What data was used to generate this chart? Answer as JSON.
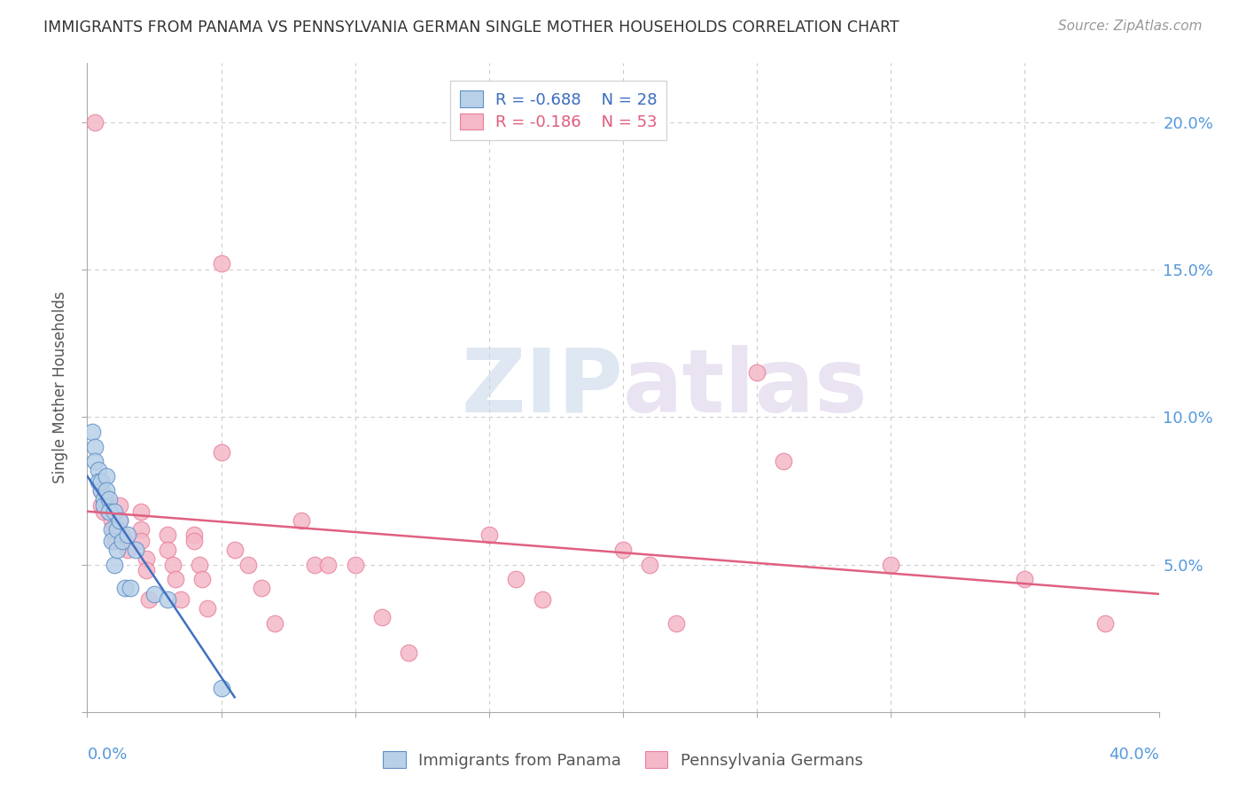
{
  "title": "IMMIGRANTS FROM PANAMA VS PENNSYLVANIA GERMAN SINGLE MOTHER HOUSEHOLDS CORRELATION CHART",
  "source": "Source: ZipAtlas.com",
  "ylabel": "Single Mother Households",
  "legend_blue_r": "-0.688",
  "legend_blue_n": "28",
  "legend_pink_r": "-0.186",
  "legend_pink_n": "53",
  "legend_blue_label": "Immigrants from Panama",
  "legend_pink_label": "Pennsylvania Germans",
  "watermark_zip": "ZIP",
  "watermark_atlas": "atlas",
  "blue_color": "#b8d0e8",
  "pink_color": "#f4b8c8",
  "blue_edge_color": "#6090c8",
  "pink_edge_color": "#e8809a",
  "blue_line_color": "#4070c0",
  "pink_line_color": "#e06080",
  "blue_scatter": [
    [
      0.2,
      9.5
    ],
    [
      0.3,
      9.0
    ],
    [
      0.3,
      8.5
    ],
    [
      0.4,
      8.2
    ],
    [
      0.4,
      7.8
    ],
    [
      0.5,
      7.5
    ],
    [
      0.5,
      7.8
    ],
    [
      0.6,
      7.2
    ],
    [
      0.6,
      7.0
    ],
    [
      0.7,
      8.0
    ],
    [
      0.7,
      7.5
    ],
    [
      0.8,
      7.2
    ],
    [
      0.8,
      6.8
    ],
    [
      0.9,
      6.2
    ],
    [
      0.9,
      5.8
    ],
    [
      1.0,
      5.0
    ],
    [
      1.0,
      6.8
    ],
    [
      1.1,
      6.2
    ],
    [
      1.1,
      5.5
    ],
    [
      1.2,
      6.5
    ],
    [
      1.3,
      5.8
    ],
    [
      1.4,
      4.2
    ],
    [
      1.5,
      6.0
    ],
    [
      1.6,
      4.2
    ],
    [
      1.8,
      5.5
    ],
    [
      2.5,
      4.0
    ],
    [
      3.0,
      3.8
    ],
    [
      5.0,
      0.8
    ]
  ],
  "pink_scatter": [
    [
      0.3,
      20.0
    ],
    [
      0.5,
      7.5
    ],
    [
      0.5,
      7.0
    ],
    [
      0.6,
      6.8
    ],
    [
      0.7,
      7.2
    ],
    [
      0.8,
      6.8
    ],
    [
      0.9,
      6.5
    ],
    [
      1.0,
      6.2
    ],
    [
      1.0,
      5.8
    ],
    [
      1.2,
      7.0
    ],
    [
      1.2,
      6.5
    ],
    [
      1.3,
      6.0
    ],
    [
      1.4,
      5.8
    ],
    [
      1.5,
      5.5
    ],
    [
      2.0,
      6.8
    ],
    [
      2.0,
      6.2
    ],
    [
      2.0,
      5.8
    ],
    [
      2.2,
      5.2
    ],
    [
      2.2,
      4.8
    ],
    [
      2.3,
      3.8
    ],
    [
      3.0,
      6.0
    ],
    [
      3.0,
      5.5
    ],
    [
      3.2,
      5.0
    ],
    [
      3.3,
      4.5
    ],
    [
      3.5,
      3.8
    ],
    [
      4.0,
      6.0
    ],
    [
      4.0,
      5.8
    ],
    [
      4.2,
      5.0
    ],
    [
      4.3,
      4.5
    ],
    [
      4.5,
      3.5
    ],
    [
      5.0,
      15.2
    ],
    [
      5.0,
      8.8
    ],
    [
      5.5,
      5.5
    ],
    [
      6.0,
      5.0
    ],
    [
      6.5,
      4.2
    ],
    [
      7.0,
      3.0
    ],
    [
      8.0,
      6.5
    ],
    [
      8.5,
      5.0
    ],
    [
      9.0,
      5.0
    ],
    [
      10.0,
      5.0
    ],
    [
      11.0,
      3.2
    ],
    [
      12.0,
      2.0
    ],
    [
      15.0,
      6.0
    ],
    [
      16.0,
      4.5
    ],
    [
      17.0,
      3.8
    ],
    [
      20.0,
      5.5
    ],
    [
      21.0,
      5.0
    ],
    [
      22.0,
      3.0
    ],
    [
      25.0,
      11.5
    ],
    [
      26.0,
      8.5
    ],
    [
      30.0,
      5.0
    ],
    [
      35.0,
      4.5
    ],
    [
      38.0,
      3.0
    ]
  ],
  "blue_trendline_x": [
    0.0,
    5.5
  ],
  "blue_trendline_y": [
    8.0,
    0.5
  ],
  "pink_trendline_x": [
    0.0,
    40.0
  ],
  "pink_trendline_y": [
    6.8,
    4.0
  ],
  "xlim": [
    0.0,
    40.0
  ],
  "ylim": [
    0.0,
    22.0
  ],
  "xticks": [
    0,
    5,
    10,
    15,
    20,
    25,
    30,
    35,
    40
  ],
  "yticks": [
    0,
    5,
    10,
    15,
    20
  ],
  "yticklabels_right": [
    "",
    "5.0%",
    "10.0%",
    "15.0%",
    "20.0%"
  ],
  "background_color": "#ffffff",
  "grid_color": "#cccccc",
  "title_color": "#333333",
  "source_color": "#999999",
  "axis_label_color": "#555555",
  "tick_label_color": "#5599dd",
  "title_fontsize": 12.5,
  "source_fontsize": 11,
  "axis_label_fontsize": 12,
  "tick_label_fontsize": 13,
  "legend_fontsize": 13,
  "scatter_size": 180,
  "scatter_alpha": 0.85,
  "scatter_linewidth": 0.8,
  "trend_linewidth": 1.8
}
